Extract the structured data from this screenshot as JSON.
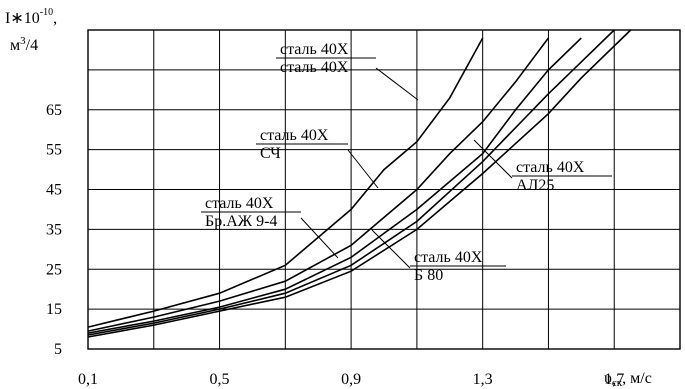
{
  "chart_data": {
    "type": "line",
    "ylabel_lines": [
      "I∗10",
      "-10",
      ",",
      "м",
      "3",
      "/4"
    ],
    "xlabel": "υ",
    "xlabel_sub": "ск",
    "xlabel_unit": ", м/с",
    "xlim": [
      0.1,
      1.9
    ],
    "ylim": [
      5,
      85
    ],
    "x_ticks": [
      "0,1",
      "0,5",
      "0,9",
      "1,3",
      "1,7"
    ],
    "x_tick_values": [
      0.1,
      0.5,
      0.9,
      1.3,
      1.7
    ],
    "y_ticks": [
      "5",
      "15",
      "25",
      "35",
      "45",
      "55",
      "65"
    ],
    "y_tick_values": [
      5,
      15,
      25,
      35,
      45,
      55,
      65
    ],
    "grid": true,
    "series": [
      {
        "name_top": "сталь 40Х",
        "name_bottom": "сталь 40Х",
        "points": [
          [
            0.1,
            10.5
          ],
          [
            0.3,
            14.5
          ],
          [
            0.5,
            19
          ],
          [
            0.7,
            26
          ],
          [
            0.9,
            40
          ],
          [
            1.0,
            50
          ],
          [
            1.1,
            57
          ],
          [
            1.2,
            68
          ],
          [
            1.3,
            83
          ]
        ]
      },
      {
        "name_top": "сталь 40Х",
        "name_bottom": "СЧ",
        "points": [
          [
            0.1,
            9.5
          ],
          [
            0.3,
            13
          ],
          [
            0.5,
            17
          ],
          [
            0.7,
            22
          ],
          [
            0.9,
            31
          ],
          [
            1.1,
            45
          ],
          [
            1.2,
            54
          ],
          [
            1.3,
            62
          ],
          [
            1.4,
            72
          ],
          [
            1.5,
            83
          ]
        ]
      },
      {
        "name_top": "сталь 40Х",
        "name_bottom": "АЛ25",
        "points": [
          [
            0.1,
            9
          ],
          [
            0.3,
            12
          ],
          [
            0.5,
            15.5
          ],
          [
            0.7,
            20
          ],
          [
            0.9,
            28
          ],
          [
            1.1,
            40
          ],
          [
            1.3,
            54
          ],
          [
            1.4,
            65
          ],
          [
            1.5,
            75
          ],
          [
            1.6,
            83
          ]
        ]
      },
      {
        "name_top": "сталь 40Х",
        "name_bottom": "Бр.АЖ 9-4",
        "points": [
          [
            0.1,
            8.5
          ],
          [
            0.3,
            11.5
          ],
          [
            0.5,
            15
          ],
          [
            0.7,
            19
          ],
          [
            0.9,
            26
          ],
          [
            1.1,
            37
          ],
          [
            1.3,
            52
          ],
          [
            1.5,
            69
          ],
          [
            1.6,
            77
          ],
          [
            1.7,
            85
          ]
        ]
      },
      {
        "name_top": "сталь 40Х",
        "name_bottom": "Б 80",
        "points": [
          [
            0.1,
            8
          ],
          [
            0.3,
            11
          ],
          [
            0.5,
            14.5
          ],
          [
            0.7,
            18
          ],
          [
            0.9,
            24.5
          ],
          [
            1.1,
            35
          ],
          [
            1.3,
            49
          ],
          [
            1.5,
            64
          ],
          [
            1.6,
            73
          ],
          [
            1.75,
            85
          ]
        ]
      }
    ]
  }
}
